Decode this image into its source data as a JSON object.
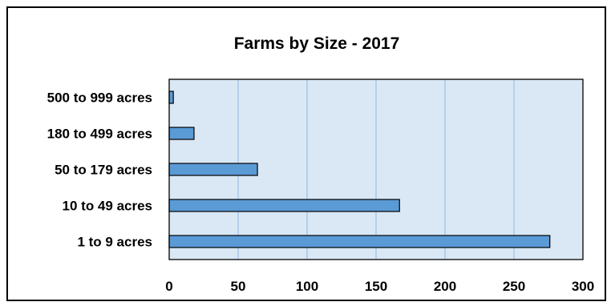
{
  "chart_data": {
    "type": "bar",
    "orientation": "horizontal",
    "title": "Farms by Size - 2017",
    "xlabel": "",
    "ylabel": "",
    "categories": [
      "1 to 9 acres",
      "10 to 49 acres",
      "50 to 179 acres",
      "180 to 499 acres",
      "500 to 999 acres"
    ],
    "values": [
      276,
      167,
      64,
      18,
      3
    ],
    "xlim": [
      0,
      300
    ],
    "xticks": [
      0,
      50,
      100,
      150,
      200,
      250,
      300
    ],
    "xtick_labels": [
      "0",
      "50",
      "100",
      "150",
      "200",
      "250",
      "300"
    ],
    "grid": true,
    "legend": "none",
    "colors": {
      "bar_fill": "#5b9bd5",
      "bar_stroke": "#000000",
      "plot_background": "#dae8f5",
      "gridline": "#9dc3e6",
      "frame": "#000000"
    }
  }
}
